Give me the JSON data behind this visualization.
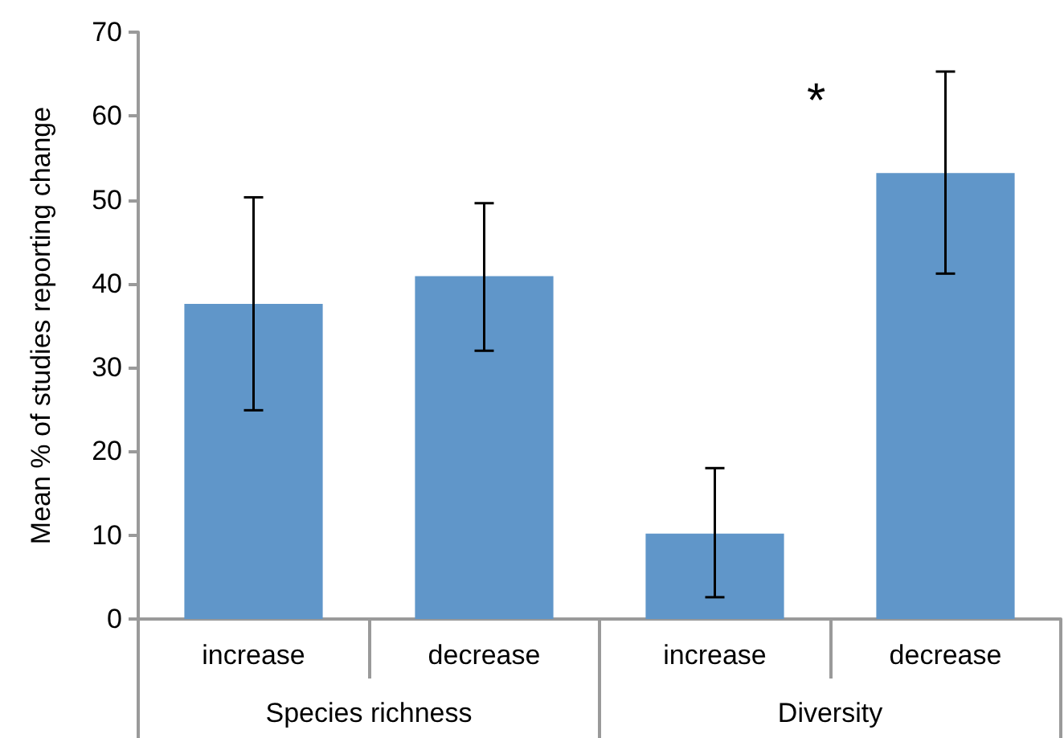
{
  "chart_data": {
    "type": "bar",
    "ylabel": "Mean % of studies reporting change",
    "categories": [
      "increase",
      "decrease",
      "increase",
      "decrease"
    ],
    "values": [
      37.6,
      40.9,
      10.2,
      53.2
    ],
    "errors": [
      [
        24.9,
        50.3
      ],
      [
        32.0,
        49.6
      ],
      [
        2.6,
        18.0
      ],
      [
        41.2,
        65.3
      ]
    ],
    "color": "#6096c9",
    "ylim": [
      0,
      70
    ],
    "yticks": [
      0,
      10,
      20,
      30,
      40,
      50,
      60,
      70
    ],
    "grid": false,
    "annotations": [
      "Species richness",
      "Diversity",
      "*"
    ]
  }
}
